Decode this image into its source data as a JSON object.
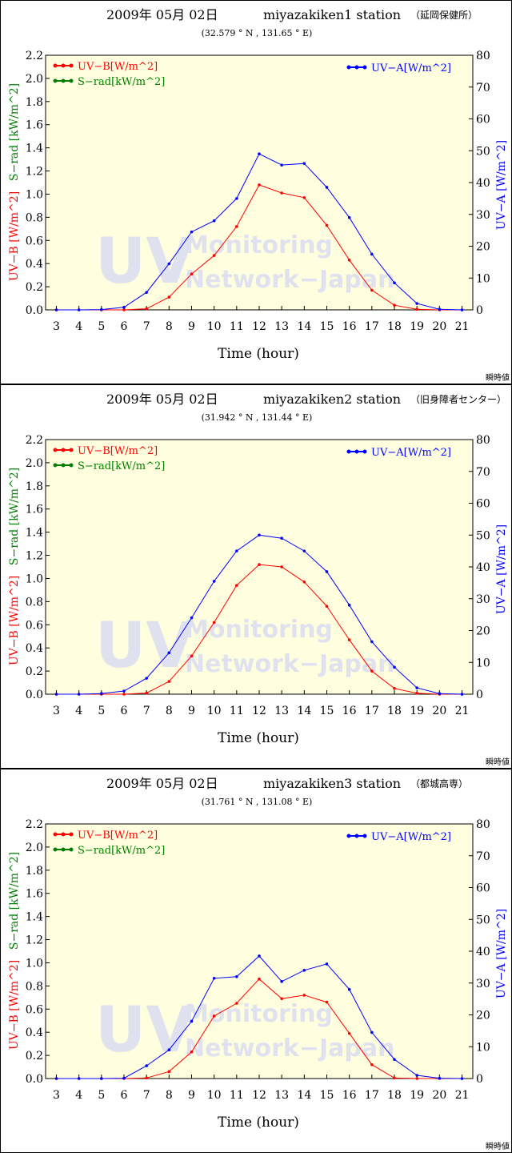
{
  "common": {
    "date_title": "2009年 05月 02日",
    "xlabel": "Time (hour)",
    "left_axis_label_uvb": "UV−B [W/m^2]",
    "left_axis_label_srad": "S−rad [kW/m^2]",
    "right_axis_label": "UV−A [W/m^2]",
    "legend_uvb": "UV−B[W/m^2]",
    "legend_srad": "S−rad[kW/m^2]",
    "legend_uva": "UV−A[W/m^2]",
    "footer_note": "瞬時値",
    "watermark_line1": "UV",
    "watermark_line2": "Monitoring",
    "watermark_line3": "Network−Japan",
    "colors": {
      "uvb": "#ff0000",
      "srad": "#008000",
      "uva": "#0000ff",
      "plot_bg": "#ffffe0"
    }
  },
  "chart_data": [
    {
      "type": "line",
      "station_title": "miyazakiken1 station",
      "station_name": "（延岡保健所）",
      "coords": "(32.579 ° N ,  131.65 ° E)",
      "x": [
        3,
        4,
        5,
        6,
        7,
        8,
        9,
        10,
        11,
        12,
        13,
        14,
        15,
        16,
        17,
        18,
        19,
        20,
        21
      ],
      "xlim": [
        3,
        21
      ],
      "ylim_left": [
        0,
        2.2
      ],
      "ylim_right": [
        0,
        80
      ],
      "left_ticks": [
        "0.0",
        "0.2",
        "0.4",
        "0.6",
        "0.8",
        "1.0",
        "1.2",
        "1.4",
        "1.6",
        "1.8",
        "2.0",
        "2.2"
      ],
      "right_ticks": [
        "0",
        "10",
        "20",
        "30",
        "40",
        "50",
        "60",
        "70",
        "80"
      ],
      "series": [
        {
          "name": "UV−B[W/m^2]",
          "axis": "left",
          "values": [
            0,
            0,
            0,
            0,
            0.01,
            0.11,
            0.31,
            0.47,
            0.72,
            1.08,
            1.01,
            0.97,
            0.73,
            0.43,
            0.17,
            0.04,
            0.005,
            0,
            0
          ]
        },
        {
          "name": "UV−A[W/m^2]",
          "axis": "right",
          "values": [
            0,
            0,
            0.1,
            0.8,
            5.5,
            14.5,
            24.5,
            28,
            35,
            49,
            45.5,
            46,
            38.5,
            29,
            17.5,
            8.5,
            2,
            0.2,
            0
          ]
        }
      ]
    },
    {
      "type": "line",
      "station_title": "miyazakiken2 station",
      "station_name": "（旧身障者センター）",
      "coords": "(31.942 ° N ,  131.44 ° E)",
      "x": [
        3,
        4,
        5,
        6,
        7,
        8,
        9,
        10,
        11,
        12,
        13,
        14,
        15,
        16,
        17,
        18,
        19,
        20,
        21
      ],
      "xlim": [
        3,
        21
      ],
      "ylim_left": [
        0,
        2.2
      ],
      "ylim_right": [
        0,
        80
      ],
      "left_ticks": [
        "0.0",
        "0.2",
        "0.4",
        "0.6",
        "0.8",
        "1.0",
        "1.2",
        "1.4",
        "1.6",
        "1.8",
        "2.0",
        "2.2"
      ],
      "right_ticks": [
        "0",
        "10",
        "20",
        "30",
        "40",
        "50",
        "60",
        "70",
        "80"
      ],
      "series": [
        {
          "name": "UV−B[W/m^2]",
          "axis": "left",
          "values": [
            0,
            0,
            0,
            0,
            0.01,
            0.11,
            0.33,
            0.62,
            0.94,
            1.12,
            1.1,
            0.97,
            0.76,
            0.47,
            0.2,
            0.05,
            0.008,
            0,
            0
          ]
        },
        {
          "name": "UV−A[W/m^2]",
          "axis": "right",
          "values": [
            0,
            0,
            0.2,
            1,
            5,
            13,
            24,
            35.5,
            45,
            50,
            49,
            45,
            38.5,
            28,
            16.5,
            8.5,
            2,
            0.2,
            0
          ]
        }
      ]
    },
    {
      "type": "line",
      "station_title": "miyazakiken3 station",
      "station_name": "（都城高専）",
      "coords": "(31.761 ° N ,  131.08 ° E)",
      "x": [
        3,
        4,
        5,
        6,
        7,
        8,
        9,
        10,
        11,
        12,
        13,
        14,
        15,
        16,
        17,
        18,
        19,
        20,
        21
      ],
      "xlim": [
        3,
        21
      ],
      "ylim_left": [
        0,
        2.2
      ],
      "ylim_right": [
        0,
        80
      ],
      "left_ticks": [
        "0.0",
        "0.2",
        "0.4",
        "0.6",
        "0.8",
        "1.0",
        "1.2",
        "1.4",
        "1.6",
        "1.8",
        "2.0",
        "2.2"
      ],
      "right_ticks": [
        "0",
        "10",
        "20",
        "30",
        "40",
        "50",
        "60",
        "70",
        "80"
      ],
      "series": [
        {
          "name": "UV−B[W/m^2]",
          "axis": "left",
          "values": [
            0,
            0,
            0,
            0,
            0.005,
            0.06,
            0.23,
            0.54,
            0.65,
            0.86,
            0.69,
            0.72,
            0.66,
            0.39,
            0.12,
            0.005,
            0,
            0,
            0
          ]
        },
        {
          "name": "UV−A[W/m^2]",
          "axis": "right",
          "values": [
            0,
            0,
            0,
            0.1,
            4,
            9,
            18,
            31.5,
            32,
            38.5,
            30.5,
            34,
            36,
            28,
            14.5,
            6,
            1,
            0.1,
            0
          ]
        }
      ]
    }
  ]
}
